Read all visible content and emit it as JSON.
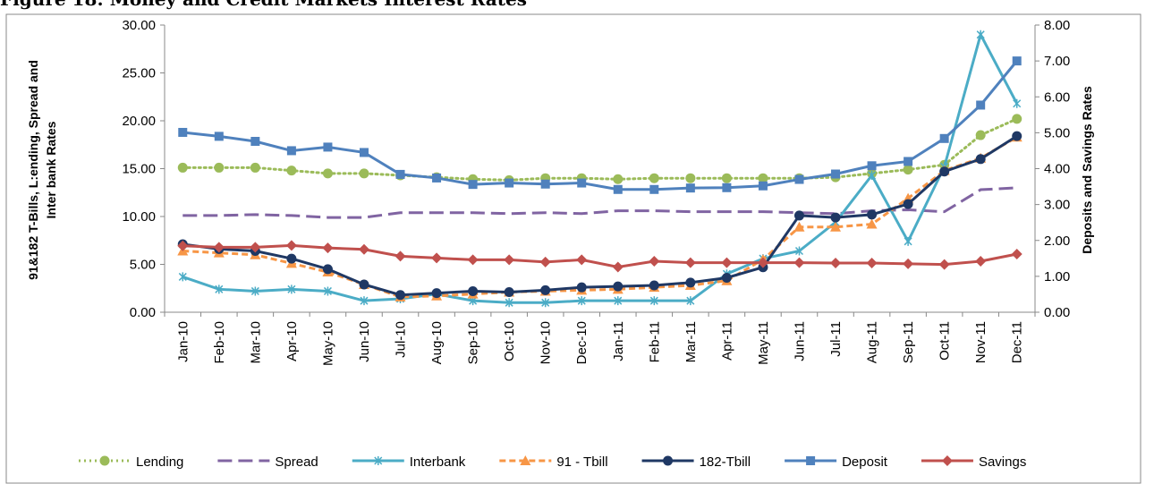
{
  "chart_data": {
    "type": "line",
    "title": "Figure 18: Money and Credit Markets Interest Rates",
    "ylabel": [
      "91&182 T-Bills, L:ending, Spread and",
      "Inter bank Rates"
    ],
    "y2label": "Deposits and Savings Rates",
    "categories": [
      "Jan-10",
      "Feb-10",
      "Mar-10",
      "Apr-10",
      "May-10",
      "Jun-10",
      "Jul-10",
      "Aug-10",
      "Sep-10",
      "Oct-10",
      "Nov-10",
      "Dec-10",
      "Jan-11",
      "Feb-11",
      "Mar-11",
      "Apr-11",
      "May-11",
      "Jun-11",
      "Jul-11",
      "Aug-11",
      "Sep-11",
      "Oct-11",
      "Nov-11",
      "Dec-11"
    ],
    "ylim": [
      0,
      30
    ],
    "yticks": [
      {
        "value": 0,
        "label": "0.00"
      },
      {
        "value": 5,
        "label": "5.00"
      },
      {
        "value": 10,
        "label": "10.00"
      },
      {
        "value": 15,
        "label": "15.00"
      },
      {
        "value": 20,
        "label": "20.00"
      },
      {
        "value": 25,
        "label": "25.00"
      },
      {
        "value": 30,
        "label": "30.00"
      }
    ],
    "y2lim": [
      0,
      8
    ],
    "y2ticks": [
      {
        "value": 0,
        "label": "0.00"
      },
      {
        "value": 1,
        "label": "1.00"
      },
      {
        "value": 2,
        "label": "2.00"
      },
      {
        "value": 3,
        "label": "3.00"
      },
      {
        "value": 4,
        "label": "4.00"
      },
      {
        "value": 5,
        "label": "5.00"
      },
      {
        "value": 6,
        "label": "6.00"
      },
      {
        "value": 7,
        "label": "7.00"
      },
      {
        "value": 8,
        "label": "8.00"
      }
    ],
    "legend": "bottom",
    "series": [
      {
        "name": "Lending",
        "color": "#9bbb59",
        "line_style": "dotted",
        "marker": "circle",
        "values": [
          15.1,
          15.1,
          15.1,
          14.8,
          14.5,
          14.5,
          14.3,
          14.1,
          13.9,
          13.8,
          14.0,
          14.0,
          13.9,
          14.0,
          14.0,
          14.0,
          14.0,
          14.0,
          14.1,
          14.5,
          14.9,
          15.4,
          18.5,
          20.2
        ]
      },
      {
        "name": "Spread",
        "color": "#8064a2",
        "line_style": "longdash",
        "marker": "none",
        "values": [
          10.1,
          10.1,
          10.2,
          10.1,
          9.9,
          9.9,
          10.4,
          10.4,
          10.4,
          10.3,
          10.4,
          10.3,
          10.6,
          10.6,
          10.5,
          10.5,
          10.5,
          10.4,
          10.3,
          10.6,
          10.7,
          10.5,
          12.8,
          13.0
        ]
      },
      {
        "name": "Interbank",
        "color": "#4bacc6",
        "line_style": "solid",
        "marker": "star",
        "values": [
          3.7,
          2.4,
          2.2,
          2.4,
          2.2,
          1.2,
          1.4,
          1.9,
          1.2,
          1.0,
          1.0,
          1.2,
          1.2,
          1.2,
          1.2,
          4.0,
          5.6,
          6.4,
          9.4,
          14.3,
          7.4,
          15.2,
          29.0,
          21.8
        ]
      },
      {
        "name": "91 - Tbill",
        "color": "#f79646",
        "line_style": "dashed",
        "marker": "triangle",
        "values": [
          6.4,
          6.2,
          6.0,
          5.1,
          4.2,
          2.9,
          1.6,
          1.7,
          1.9,
          2.1,
          2.2,
          2.3,
          2.4,
          2.6,
          2.8,
          3.3,
          5.5,
          8.9,
          8.9,
          9.2,
          11.9,
          14.8,
          16.1,
          18.3
        ]
      },
      {
        "name": "182-Tbill",
        "color": "#1f3864",
        "line_style": "solid",
        "marker": "circle",
        "values": [
          7.1,
          6.6,
          6.4,
          5.6,
          4.5,
          2.9,
          1.8,
          2.0,
          2.2,
          2.1,
          2.3,
          2.6,
          2.7,
          2.8,
          3.1,
          3.6,
          4.7,
          10.1,
          9.9,
          10.2,
          11.3,
          14.7,
          16.0,
          18.4
        ]
      },
      {
        "name": "Deposit",
        "color": "#4f81bd",
        "line_style": "solid",
        "marker": "square",
        "axis": "y2",
        "values": [
          5.01,
          4.9,
          4.76,
          4.5,
          4.6,
          4.45,
          3.84,
          3.74,
          3.56,
          3.6,
          3.57,
          3.6,
          3.42,
          3.42,
          3.46,
          3.47,
          3.52,
          3.7,
          3.85,
          4.08,
          4.2,
          4.84,
          5.77,
          7.0
        ]
      },
      {
        "name": "Savings",
        "color": "#c0504d",
        "line_style": "solid",
        "marker": "diamond",
        "axis": "y2",
        "values": [
          1.85,
          1.81,
          1.81,
          1.86,
          1.79,
          1.75,
          1.56,
          1.51,
          1.46,
          1.46,
          1.4,
          1.46,
          1.26,
          1.42,
          1.38,
          1.38,
          1.38,
          1.38,
          1.37,
          1.37,
          1.35,
          1.33,
          1.42,
          1.62
        ]
      }
    ]
  }
}
